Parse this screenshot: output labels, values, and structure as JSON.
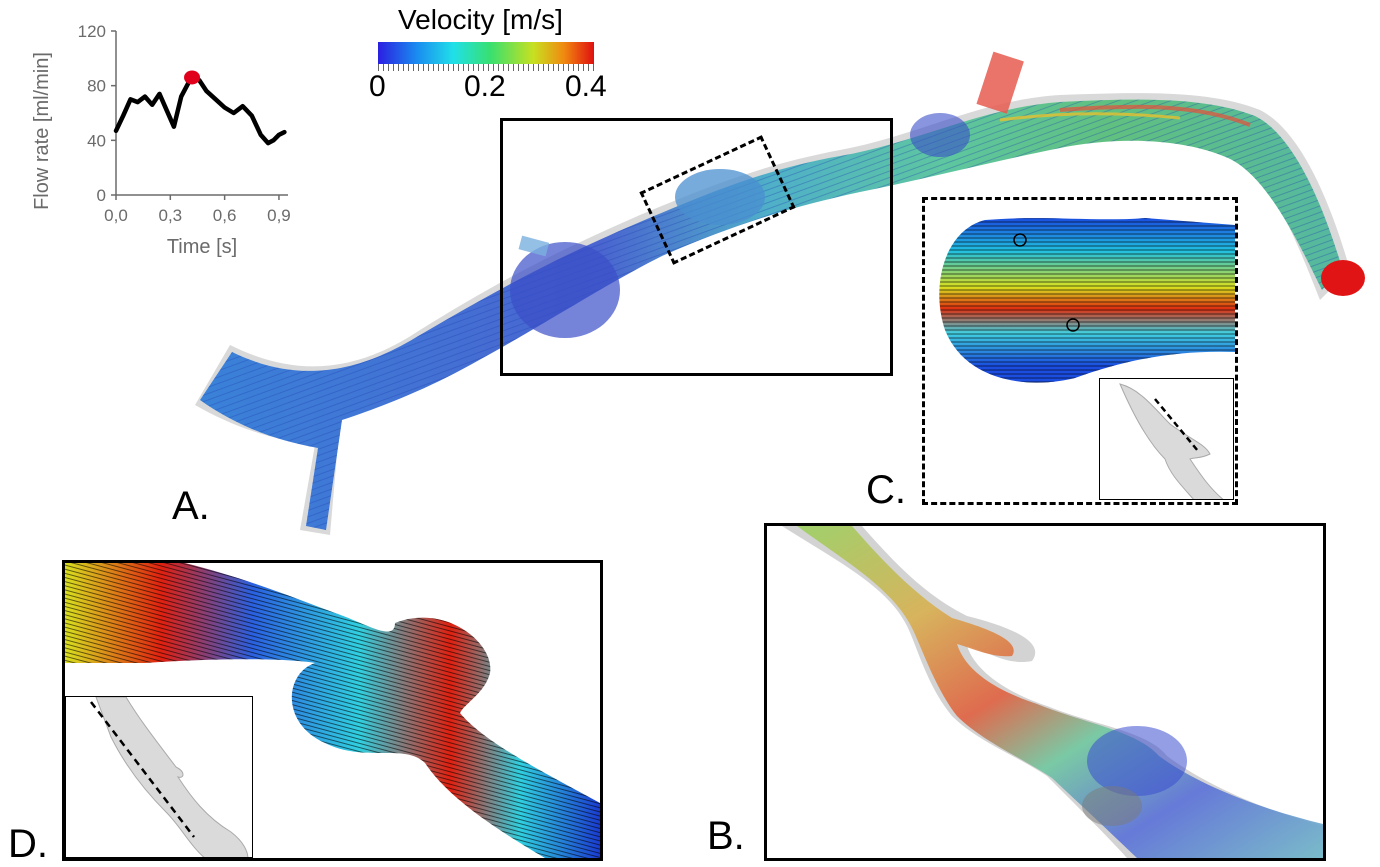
{
  "labels": {
    "a": "A.",
    "b": "B.",
    "c": "C.",
    "d": "D."
  },
  "colorbar": {
    "title": "Velocity [m/s]",
    "ticks": [
      "0",
      "0.2",
      "0.4"
    ]
  },
  "chart_data": {
    "type": "line",
    "xlabel": "Time [s]",
    "ylabel": "Flow rate [ml/min]",
    "xticks": [
      "0,0",
      "0,3",
      "0,6",
      "0,9"
    ],
    "yticks": [
      "0",
      "40",
      "80",
      "120"
    ],
    "xlim": [
      0,
      0.95
    ],
    "ylim": [
      0,
      120
    ],
    "x": [
      0.0,
      0.04,
      0.08,
      0.12,
      0.16,
      0.2,
      0.24,
      0.28,
      0.32,
      0.36,
      0.4,
      0.42,
      0.46,
      0.5,
      0.55,
      0.6,
      0.65,
      0.7,
      0.75,
      0.8,
      0.84,
      0.87,
      0.9,
      0.93
    ],
    "y": [
      47,
      58,
      70,
      68,
      72,
      66,
      74,
      62,
      50,
      72,
      82,
      86,
      84,
      76,
      70,
      64,
      60,
      65,
      58,
      44,
      38,
      40,
      44,
      46
    ],
    "marker": {
      "x": 0.42,
      "y": 86,
      "color": "#e0001b"
    },
    "line_color": "#000000"
  },
  "colors": {
    "low": "#1a2dd6",
    "mid": "#2fe0a0",
    "high": "#e01414",
    "vessel_shell": "#b9b9b9"
  }
}
